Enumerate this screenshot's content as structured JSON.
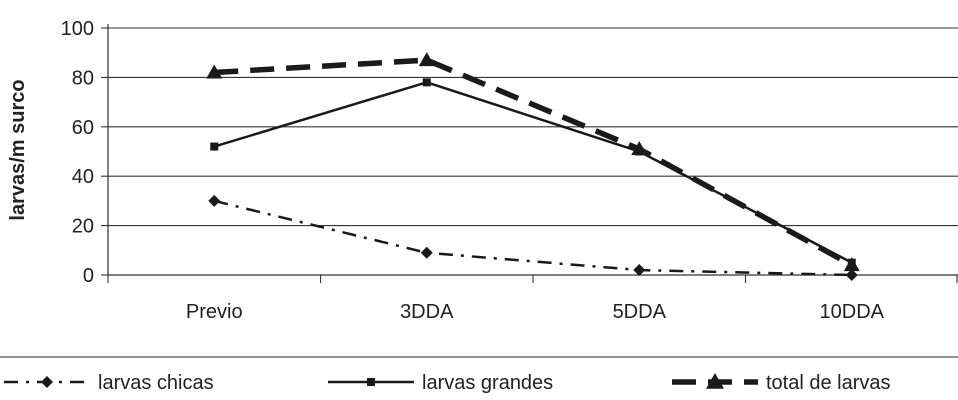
{
  "chart_data": {
    "type": "line",
    "title": "",
    "xlabel": "",
    "ylabel": "larvas/m surco",
    "categories": [
      "Previo",
      "3DDA",
      "5DDA",
      "10DDA"
    ],
    "ylim": [
      0,
      100
    ],
    "yticks": [
      0,
      20,
      40,
      60,
      80,
      100
    ],
    "grid": true,
    "legend_position": "bottom",
    "series": [
      {
        "name": "larvas chicas",
        "values": [
          30,
          9,
          2,
          0
        ],
        "color": "#1a1a1a",
        "line_style": "dash-dot",
        "marker": "diamond"
      },
      {
        "name": "larvas grandes",
        "values": [
          52,
          78,
          50,
          5
        ],
        "color": "#1a1a1a",
        "line_style": "solid",
        "marker": "square"
      },
      {
        "name": "total de larvas",
        "values": [
          82,
          87,
          51,
          4
        ],
        "color": "#1a1a1a",
        "line_style": "long-dash",
        "marker": "triangle"
      }
    ]
  }
}
